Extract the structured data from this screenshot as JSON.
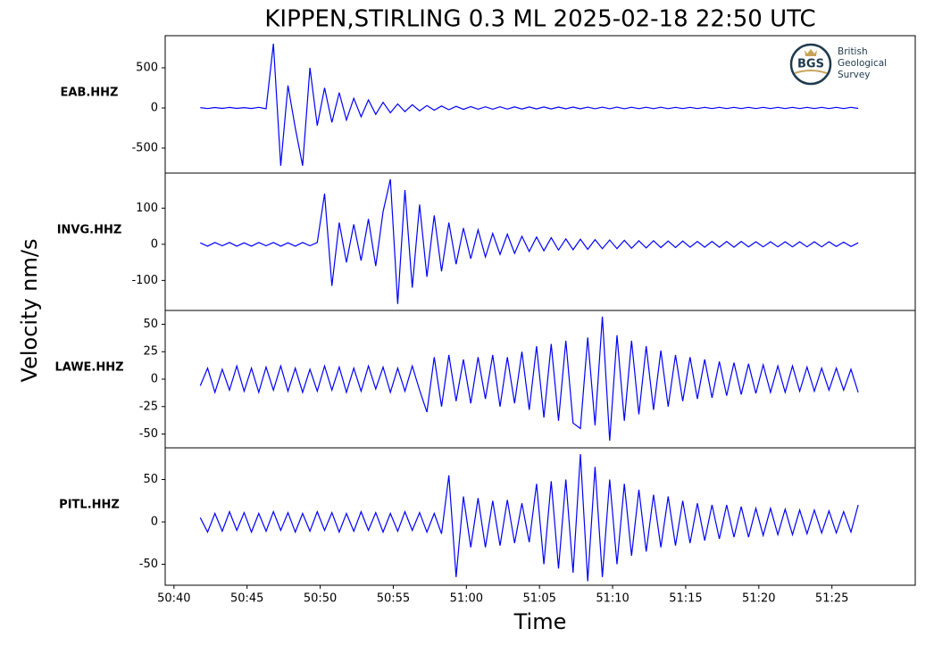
{
  "title": "KIPPEN,STIRLING 0.3 ML   2025-02-18 22:50 UTC",
  "ylabel": "Velocity nm/s",
  "xlabel": "Time",
  "logo": {
    "abbr": "BGS",
    "lines": [
      "British",
      "Geological",
      "Survey"
    ]
  },
  "chart_data": [
    {
      "type": "line",
      "label": "EAB.HHZ",
      "color": "#0000ff",
      "x": [
        41.8,
        42.3,
        42.8,
        43.3,
        43.8,
        44.3,
        44.8,
        45.3,
        45.8,
        46.3,
        46.8,
        47.3,
        47.8,
        48.3,
        48.8,
        49.3,
        49.8,
        50.3,
        50.8,
        51.3,
        51.8,
        52.3,
        52.8,
        53.3,
        53.8,
        54.3,
        54.8,
        55.3,
        55.8,
        56.3,
        56.8,
        57.3,
        57.8,
        58.3,
        58.8,
        59.3,
        59.8,
        60.3,
        60.8,
        61.3,
        61.8,
        62.3,
        62.8,
        63.3,
        63.8,
        64.3,
        64.8,
        65.3,
        65.8,
        66.3,
        66.8,
        67.3,
        67.8,
        68.3,
        68.8,
        69.3,
        69.8,
        70.3,
        70.8,
        71.3,
        71.8,
        72.3,
        72.8,
        73.3,
        73.8,
        74.3,
        74.8,
        75.3,
        75.8,
        76.3,
        76.8,
        77.3,
        77.8,
        78.3,
        78.8,
        79.3,
        79.8,
        80.3,
        80.8,
        81.3,
        81.8,
        82.3,
        82.8,
        83.3,
        83.8,
        84.3,
        84.8,
        85.3,
        85.8,
        86.3,
        86.8
      ],
      "values": [
        5,
        -8,
        6,
        -5,
        7,
        -6,
        4,
        -7,
        8,
        -10,
        800,
        -720,
        280,
        -250,
        -720,
        500,
        -220,
        250,
        -180,
        190,
        -150,
        120,
        -110,
        100,
        -80,
        70,
        -60,
        50,
        -45,
        40,
        -35,
        30,
        -28,
        25,
        -22,
        20,
        -18,
        17,
        -16,
        15,
        -15,
        14,
        -14,
        13,
        -13,
        12,
        -12,
        12,
        -12,
        11,
        -11,
        11,
        -11,
        10,
        -10,
        10,
        -10,
        10,
        -10,
        9,
        -9,
        9,
        -9,
        9,
        -9,
        8,
        -8,
        8,
        -8,
        8,
        -8,
        8,
        -8,
        8,
        -8,
        8,
        -8,
        8,
        -8,
        8,
        -8,
        8,
        -8,
        8,
        -8,
        8,
        -8,
        8,
        -8,
        8,
        -5
      ],
      "xlim": [
        39.4,
        90.7
      ],
      "ylim": [
        -811,
        900
      ],
      "yticks": [
        500,
        0,
        -500
      ]
    },
    {
      "type": "line",
      "label": "INVG.HHZ",
      "color": "#0000ff",
      "x": [
        41.8,
        42.3,
        42.8,
        43.3,
        43.8,
        44.3,
        44.8,
        45.3,
        45.8,
        46.3,
        46.8,
        47.3,
        47.8,
        48.3,
        48.8,
        49.3,
        49.8,
        50.3,
        50.8,
        51.3,
        51.8,
        52.3,
        52.8,
        53.3,
        53.8,
        54.3,
        54.8,
        55.3,
        55.8,
        56.3,
        56.8,
        57.3,
        57.8,
        58.3,
        58.8,
        59.3,
        59.8,
        60.3,
        60.8,
        61.3,
        61.8,
        62.3,
        62.8,
        63.3,
        63.8,
        64.3,
        64.8,
        65.3,
        65.8,
        66.3,
        66.8,
        67.3,
        67.8,
        68.3,
        68.8,
        69.3,
        69.8,
        70.3,
        70.8,
        71.3,
        71.8,
        72.3,
        72.8,
        73.3,
        73.8,
        74.3,
        74.8,
        75.3,
        75.8,
        76.3,
        76.8,
        77.3,
        77.8,
        78.3,
        78.8,
        79.3,
        79.8,
        80.3,
        80.8,
        81.3,
        81.8,
        82.3,
        82.8,
        83.3,
        83.8,
        84.3,
        84.8,
        85.3,
        85.8,
        86.3,
        86.8
      ],
      "values": [
        4,
        -5,
        5,
        -4,
        5,
        -5,
        4,
        -5,
        5,
        -4,
        5,
        -5,
        4,
        -5,
        5,
        -4,
        5,
        140,
        -115,
        60,
        -50,
        55,
        -45,
        70,
        -60,
        90,
        180,
        -165,
        150,
        -120,
        110,
        -90,
        80,
        -75,
        60,
        -55,
        45,
        -40,
        40,
        -35,
        30,
        -28,
        28,
        -25,
        22,
        -20,
        20,
        -18,
        18,
        -16,
        15,
        -15,
        14,
        -14,
        13,
        -12,
        12,
        -12,
        11,
        -11,
        10,
        -10,
        10,
        -9,
        9,
        -9,
        9,
        -8,
        8,
        -8,
        8,
        -8,
        8,
        -8,
        8,
        -7,
        7,
        -7,
        7,
        -7,
        7,
        -7,
        7,
        -7,
        7,
        -7,
        7,
        -6,
        6,
        -6,
        4
      ],
      "xlim": [
        39.4,
        90.7
      ],
      "ylim": [
        -183,
        197
      ],
      "yticks": [
        100,
        0,
        -100
      ]
    },
    {
      "type": "line",
      "label": "LAWE.HHZ",
      "color": "#0000ff",
      "x": [
        41.8,
        42.3,
        42.8,
        43.3,
        43.8,
        44.3,
        44.8,
        45.3,
        45.8,
        46.3,
        46.8,
        47.3,
        47.8,
        48.3,
        48.8,
        49.3,
        49.8,
        50.3,
        50.8,
        51.3,
        51.8,
        52.3,
        52.8,
        53.3,
        53.8,
        54.3,
        54.8,
        55.3,
        55.8,
        56.3,
        56.8,
        57.3,
        57.8,
        58.3,
        58.8,
        59.3,
        59.8,
        60.3,
        60.8,
        61.3,
        61.8,
        62.3,
        62.8,
        63.3,
        63.8,
        64.3,
        64.8,
        65.3,
        65.8,
        66.3,
        66.8,
        67.3,
        67.8,
        68.3,
        68.8,
        69.3,
        69.8,
        70.3,
        70.8,
        71.3,
        71.8,
        72.3,
        72.8,
        73.3,
        73.8,
        74.3,
        74.8,
        75.3,
        75.8,
        76.3,
        76.8,
        77.3,
        77.8,
        78.3,
        78.8,
        79.3,
        79.8,
        80.3,
        80.8,
        81.3,
        81.8,
        82.3,
        82.8,
        83.3,
        83.8,
        84.3,
        84.8,
        85.3,
        85.8,
        86.3,
        86.8
      ],
      "values": [
        -6,
        10,
        -12,
        9,
        -10,
        12,
        -11,
        10,
        -12,
        11,
        -10,
        12,
        -11,
        10,
        -12,
        9,
        -11,
        12,
        -10,
        11,
        -12,
        10,
        -11,
        12,
        -9,
        11,
        -12,
        10,
        -11,
        12,
        -10,
        -30,
        20,
        -25,
        22,
        -20,
        18,
        -22,
        20,
        -18,
        22,
        -25,
        20,
        -22,
        25,
        -28,
        30,
        -35,
        32,
        -38,
        35,
        -40,
        -45,
        38,
        -42,
        57,
        -56,
        40,
        -38,
        35,
        -32,
        30,
        -28,
        26,
        -25,
        22,
        -20,
        20,
        -18,
        18,
        -17,
        16,
        -15,
        15,
        -14,
        14,
        -13,
        13,
        -12,
        12,
        -12,
        12,
        -11,
        11,
        -11,
        10,
        -10,
        10,
        -10,
        9,
        -12
      ],
      "xlim": [
        39.4,
        90.7
      ],
      "ylim": [
        -62.6,
        62.6
      ],
      "yticks": [
        50,
        25,
        0,
        -25,
        -50
      ]
    },
    {
      "type": "line",
      "label": "PITL.HHZ",
      "color": "#0000ff",
      "x": [
        41.8,
        42.3,
        42.8,
        43.3,
        43.8,
        44.3,
        44.8,
        45.3,
        45.8,
        46.3,
        46.8,
        47.3,
        47.8,
        48.3,
        48.8,
        49.3,
        49.8,
        50.3,
        50.8,
        51.3,
        51.8,
        52.3,
        52.8,
        53.3,
        53.8,
        54.3,
        54.8,
        55.3,
        55.8,
        56.3,
        56.8,
        57.3,
        57.8,
        58.3,
        58.8,
        59.3,
        59.8,
        60.3,
        60.8,
        61.3,
        61.8,
        62.3,
        62.8,
        63.3,
        63.8,
        64.3,
        64.8,
        65.3,
        65.8,
        66.3,
        66.8,
        67.3,
        67.8,
        68.3,
        68.8,
        69.3,
        69.8,
        70.3,
        70.8,
        71.3,
        71.8,
        72.3,
        72.8,
        73.3,
        73.8,
        74.3,
        74.8,
        75.3,
        75.8,
        76.3,
        76.8,
        77.3,
        77.8,
        78.3,
        78.8,
        79.3,
        79.8,
        80.3,
        80.8,
        81.3,
        81.8,
        82.3,
        82.8,
        83.3,
        83.8,
        84.3,
        84.8,
        85.3,
        85.8,
        86.3,
        86.8
      ],
      "values": [
        5,
        -12,
        10,
        -11,
        12,
        -10,
        11,
        -12,
        10,
        -11,
        12,
        -10,
        11,
        -12,
        10,
        -11,
        12,
        -10,
        11,
        -12,
        10,
        -11,
        12,
        -10,
        11,
        -12,
        10,
        -11,
        12,
        -10,
        11,
        -12,
        10,
        -14,
        55,
        -65,
        30,
        -30,
        28,
        -30,
        25,
        -28,
        26,
        -25,
        22,
        -24,
        45,
        -50,
        48,
        -55,
        50,
        -60,
        80,
        -70,
        65,
        -65,
        50,
        -50,
        45,
        -40,
        38,
        -35,
        32,
        -30,
        30,
        -28,
        25,
        -25,
        22,
        -22,
        20,
        -20,
        20,
        -18,
        18,
        -18,
        16,
        -16,
        16,
        -15,
        15,
        -15,
        14,
        -14,
        14,
        -13,
        13,
        -13,
        12,
        -12,
        20
      ],
      "xlim": [
        39.4,
        90.7
      ],
      "ylim": [
        -74.7,
        87.4
      ],
      "yticks": [
        50,
        0,
        -50
      ],
      "xticks": [
        {
          "value": 40,
          "label": "50:40"
        },
        {
          "value": 45,
          "label": "50:45"
        },
        {
          "value": 50,
          "label": "50:50"
        },
        {
          "value": 55,
          "label": "50:55"
        },
        {
          "value": 60,
          "label": "51:00"
        },
        {
          "value": 65,
          "label": "51:05"
        },
        {
          "value": 70,
          "label": "51:10"
        },
        {
          "value": 75,
          "label": "51:15"
        },
        {
          "value": 80,
          "label": "51:20"
        },
        {
          "value": 85,
          "label": "51:25"
        }
      ]
    }
  ]
}
